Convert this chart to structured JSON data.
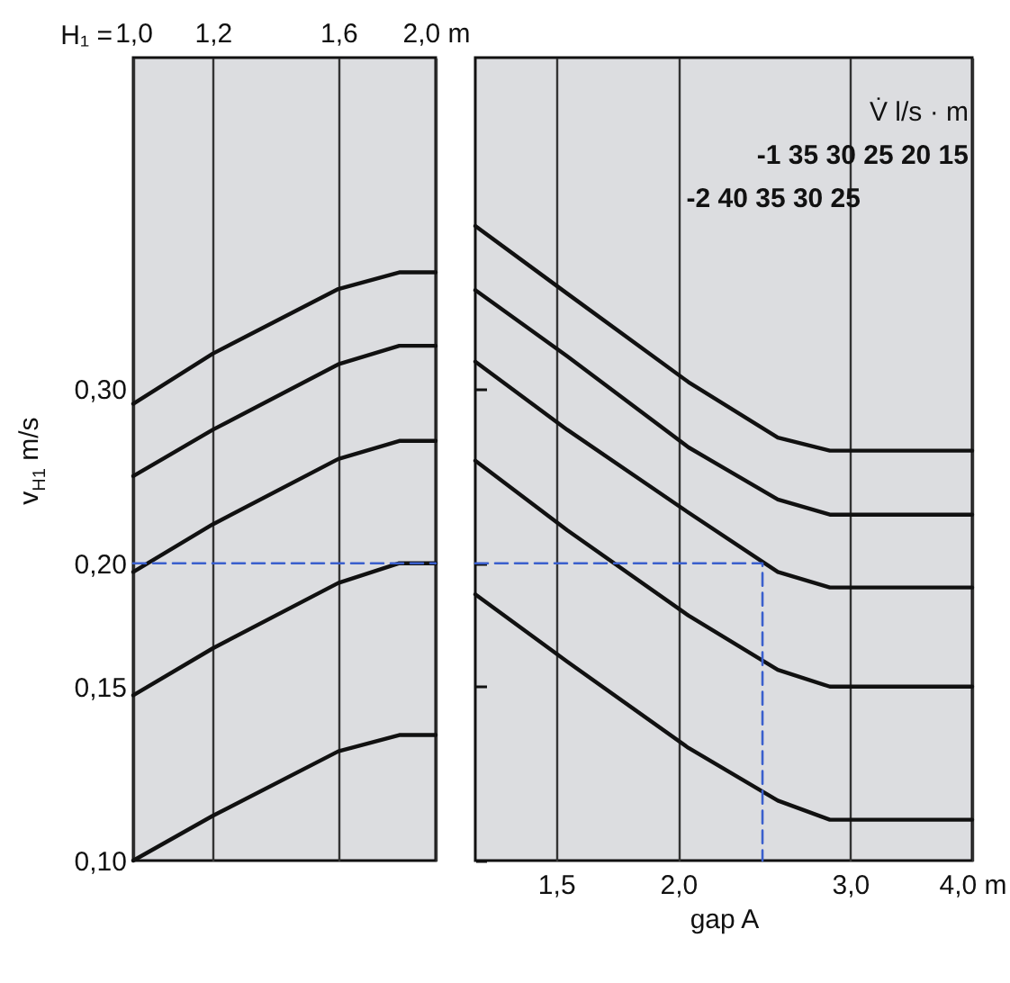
{
  "chart_data": [
    {
      "type": "line",
      "xlabel": "H₁ =",
      "ylabel": "v$_{H1}$ m/s",
      "log": "xy",
      "grid": "x",
      "xlim": [
        1.0,
        2.0
      ],
      "xticks": [
        {
          "value": 1.0,
          "label": "1,0"
        },
        {
          "value": 1.2,
          "label": "1,2"
        },
        {
          "value": 1.6,
          "label": "1,6"
        },
        {
          "value": 2.0,
          "label": "2,0 m"
        }
      ],
      "ylim": [
        0.1,
        0.65
      ],
      "yticks": [
        {
          "value": 0.1,
          "label": "0,10"
        },
        {
          "value": 0.15,
          "label": "0,15"
        },
        {
          "value": 0.2,
          "label": "0,20"
        },
        {
          "value": 0.3,
          "label": "0,30"
        }
      ],
      "x": [
        1.0,
        1.2,
        1.6,
        1.84,
        2.0
      ],
      "series": [
        {
          "color": "#111111",
          "values": [
            0.29,
            0.326,
            0.379,
            0.394,
            0.394
          ]
        },
        {
          "color": "#111111",
          "values": [
            0.245,
            0.273,
            0.318,
            0.332,
            0.332
          ]
        },
        {
          "color": "#111111",
          "values": [
            0.196,
            0.219,
            0.255,
            0.266,
            0.266
          ]
        },
        {
          "color": "#111111",
          "values": [
            0.147,
            0.164,
            0.191,
            0.2,
            0.2
          ]
        },
        {
          "color": "#111111",
          "values": [
            0.1,
            0.111,
            0.129,
            0.134,
            0.134
          ]
        },
        {
          "color": "#3a5fcd",
          "line_style": "dashed",
          "x": [
            1.0,
            2.0
          ],
          "values": [
            0.2,
            0.2
          ]
        }
      ]
    },
    {
      "type": "line",
      "xlabel": "gap A",
      "log": "xy",
      "grid": "x",
      "tick_labels": "x",
      "xlim": [
        1.24,
        4.0
      ],
      "xticks": [
        {
          "value": 1.5,
          "label": "1,5"
        },
        {
          "value": 2.0,
          "label": "2,0"
        },
        {
          "value": 3.0,
          "label": "3,0"
        },
        {
          "value": 4.0,
          "label": "4,0 m"
        }
      ],
      "ylim": [
        0.1,
        0.65
      ],
      "yticks": [
        0.1,
        0.15,
        0.2,
        0.3
      ],
      "annotations": [
        "V̇  l/s · m",
        "-1 35 30 25 20 15",
        "-2 40 35 30 25"
      ],
      "x": [
        1.24,
        1.54,
        2.05,
        2.53,
        2.86,
        4.0
      ],
      "series": [
        {
          "color": "#111111",
          "values": [
            0.439,
            0.375,
            0.305,
            0.268,
            0.26,
            0.26
          ]
        },
        {
          "color": "#111111",
          "values": [
            0.378,
            0.324,
            0.262,
            0.232,
            0.224,
            0.224
          ]
        },
        {
          "color": "#111111",
          "values": [
            0.32,
            0.273,
            0.225,
            0.196,
            0.189,
            0.189
          ]
        },
        {
          "color": "#111111",
          "values": [
            0.254,
            0.216,
            0.177,
            0.156,
            0.15,
            0.15
          ]
        },
        {
          "color": "#111111",
          "values": [
            0.186,
            0.159,
            0.13,
            0.115,
            0.11,
            0.11
          ]
        },
        {
          "color": "#3a5fcd",
          "line_style": "dashed",
          "x": [
            1.24,
            2.44,
            2.44
          ],
          "values": [
            0.2,
            0.2,
            0.1
          ]
        }
      ]
    }
  ]
}
